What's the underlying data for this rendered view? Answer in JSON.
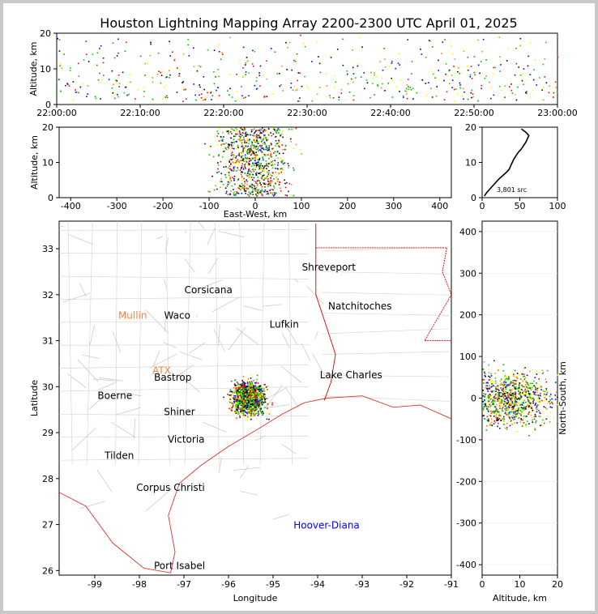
{
  "chart_data": {
    "type": "scatter",
    "title": "Houston Lightning Mapping Array 2200-2300 UTC April 01, 2025",
    "source_count": "3,801 src",
    "time_panel": {
      "ylabel": "Altitude, km",
      "ylim": [
        0,
        20
      ],
      "yticks": [
        "0",
        "10",
        "20"
      ],
      "xticks": [
        "22:00:00",
        "22:10:00",
        "22:20:00",
        "22:30:00",
        "22:40:00",
        "22:50:00",
        "23:00:00"
      ]
    },
    "ew_panel": {
      "xlabel": "East-West, km",
      "ylabel": "Altitude, km",
      "xlim": [
        -425,
        425
      ],
      "ylim": [
        0,
        20
      ],
      "xticks": [
        "-400",
        "-300",
        "-200",
        "-100",
        "0",
        "100",
        "200",
        "300",
        "400"
      ],
      "yticks": [
        "0",
        "10",
        "20"
      ]
    },
    "histogram": {
      "xlim": [
        0,
        100
      ],
      "ylim": [
        0,
        20
      ],
      "xticks": [
        "0",
        "50",
        "100"
      ],
      "yticks": [
        "0",
        "10",
        "20"
      ],
      "profile": [
        [
          3,
          0
        ],
        [
          6,
          1
        ],
        [
          10,
          2
        ],
        [
          14,
          3
        ],
        [
          18,
          4
        ],
        [
          22,
          5
        ],
        [
          27,
          6
        ],
        [
          32,
          7
        ],
        [
          36,
          8
        ],
        [
          38,
          9
        ],
        [
          40,
          10
        ],
        [
          42,
          11
        ],
        [
          45,
          12
        ],
        [
          48,
          13
        ],
        [
          52,
          14
        ],
        [
          55,
          15
        ],
        [
          58,
          16
        ],
        [
          60,
          17
        ],
        [
          62,
          18
        ],
        [
          58,
          19
        ],
        [
          52,
          20
        ]
      ]
    },
    "plan_panel": {
      "xlabel": "Longitude",
      "ylabel": "Latitude",
      "xlim": [
        -99.8,
        -91
      ],
      "ylim": [
        25.9,
        33.6
      ],
      "xticks": [
        "-99",
        "-98",
        "-97",
        "-96",
        "-95",
        "-94",
        "-93",
        "-92",
        "-91"
      ],
      "yticks": [
        "26",
        "27",
        "28",
        "29",
        "30",
        "31",
        "32",
        "33"
      ],
      "storm_center": [
        -95.55,
        29.75
      ],
      "cities": [
        {
          "name": "Shreveport",
          "lon": -93.75,
          "lat": 32.6,
          "color": "#000000"
        },
        {
          "name": "Corsicana",
          "lon": -96.45,
          "lat": 32.1,
          "color": "#000000"
        },
        {
          "name": "Natchitoches",
          "lon": -93.05,
          "lat": 31.75,
          "color": "#000000"
        },
        {
          "name": "Mullin",
          "lon": -98.15,
          "lat": 31.55,
          "color": "#ff7f3f"
        },
        {
          "name": "Waco",
          "lon": -97.15,
          "lat": 31.55,
          "color": "#000000"
        },
        {
          "name": "Lufkin",
          "lon": -94.75,
          "lat": 31.35,
          "color": "#000000"
        },
        {
          "name": "ATX",
          "lon": -97.5,
          "lat": 30.35,
          "color": "#ff7f3f"
        },
        {
          "name": "Bastrop",
          "lon": -97.25,
          "lat": 30.2,
          "color": "#000000"
        },
        {
          "name": "Lake Charles",
          "lon": -93.25,
          "lat": 30.25,
          "color": "#000000"
        },
        {
          "name": "Boerne",
          "lon": -98.55,
          "lat": 29.8,
          "color": "#000000"
        },
        {
          "name": "Shiner",
          "lon": -97.1,
          "lat": 29.45,
          "color": "#000000"
        },
        {
          "name": "Victoria",
          "lon": -96.95,
          "lat": 28.85,
          "color": "#000000"
        },
        {
          "name": "Tilden",
          "lon": -98.45,
          "lat": 28.5,
          "color": "#000000"
        },
        {
          "name": "Corpus Christi",
          "lon": -97.3,
          "lat": 27.8,
          "color": "#000000"
        },
        {
          "name": "Hoover-Diana",
          "lon": -93.8,
          "lat": 26.98,
          "color": "#0000ee"
        },
        {
          "name": "Port Isabel",
          "lon": -97.1,
          "lat": 26.1,
          "color": "#000000"
        }
      ]
    },
    "ns_panel": {
      "xlabel": "Altitude, km",
      "ylabel": "North-South, km",
      "xlim": [
        0,
        20
      ],
      "ylim": [
        -425,
        425
      ],
      "xticks": [
        "0",
        "10",
        "20"
      ],
      "yticks": [
        "-400",
        "-300",
        "-200",
        "-100",
        "0",
        "100",
        "200",
        "300",
        "400"
      ]
    },
    "source_colors": [
      "#0000ff",
      "#00aa00",
      "#00dd00",
      "#ffff00",
      "#ff8800",
      "#ff0000",
      "#000000"
    ]
  }
}
